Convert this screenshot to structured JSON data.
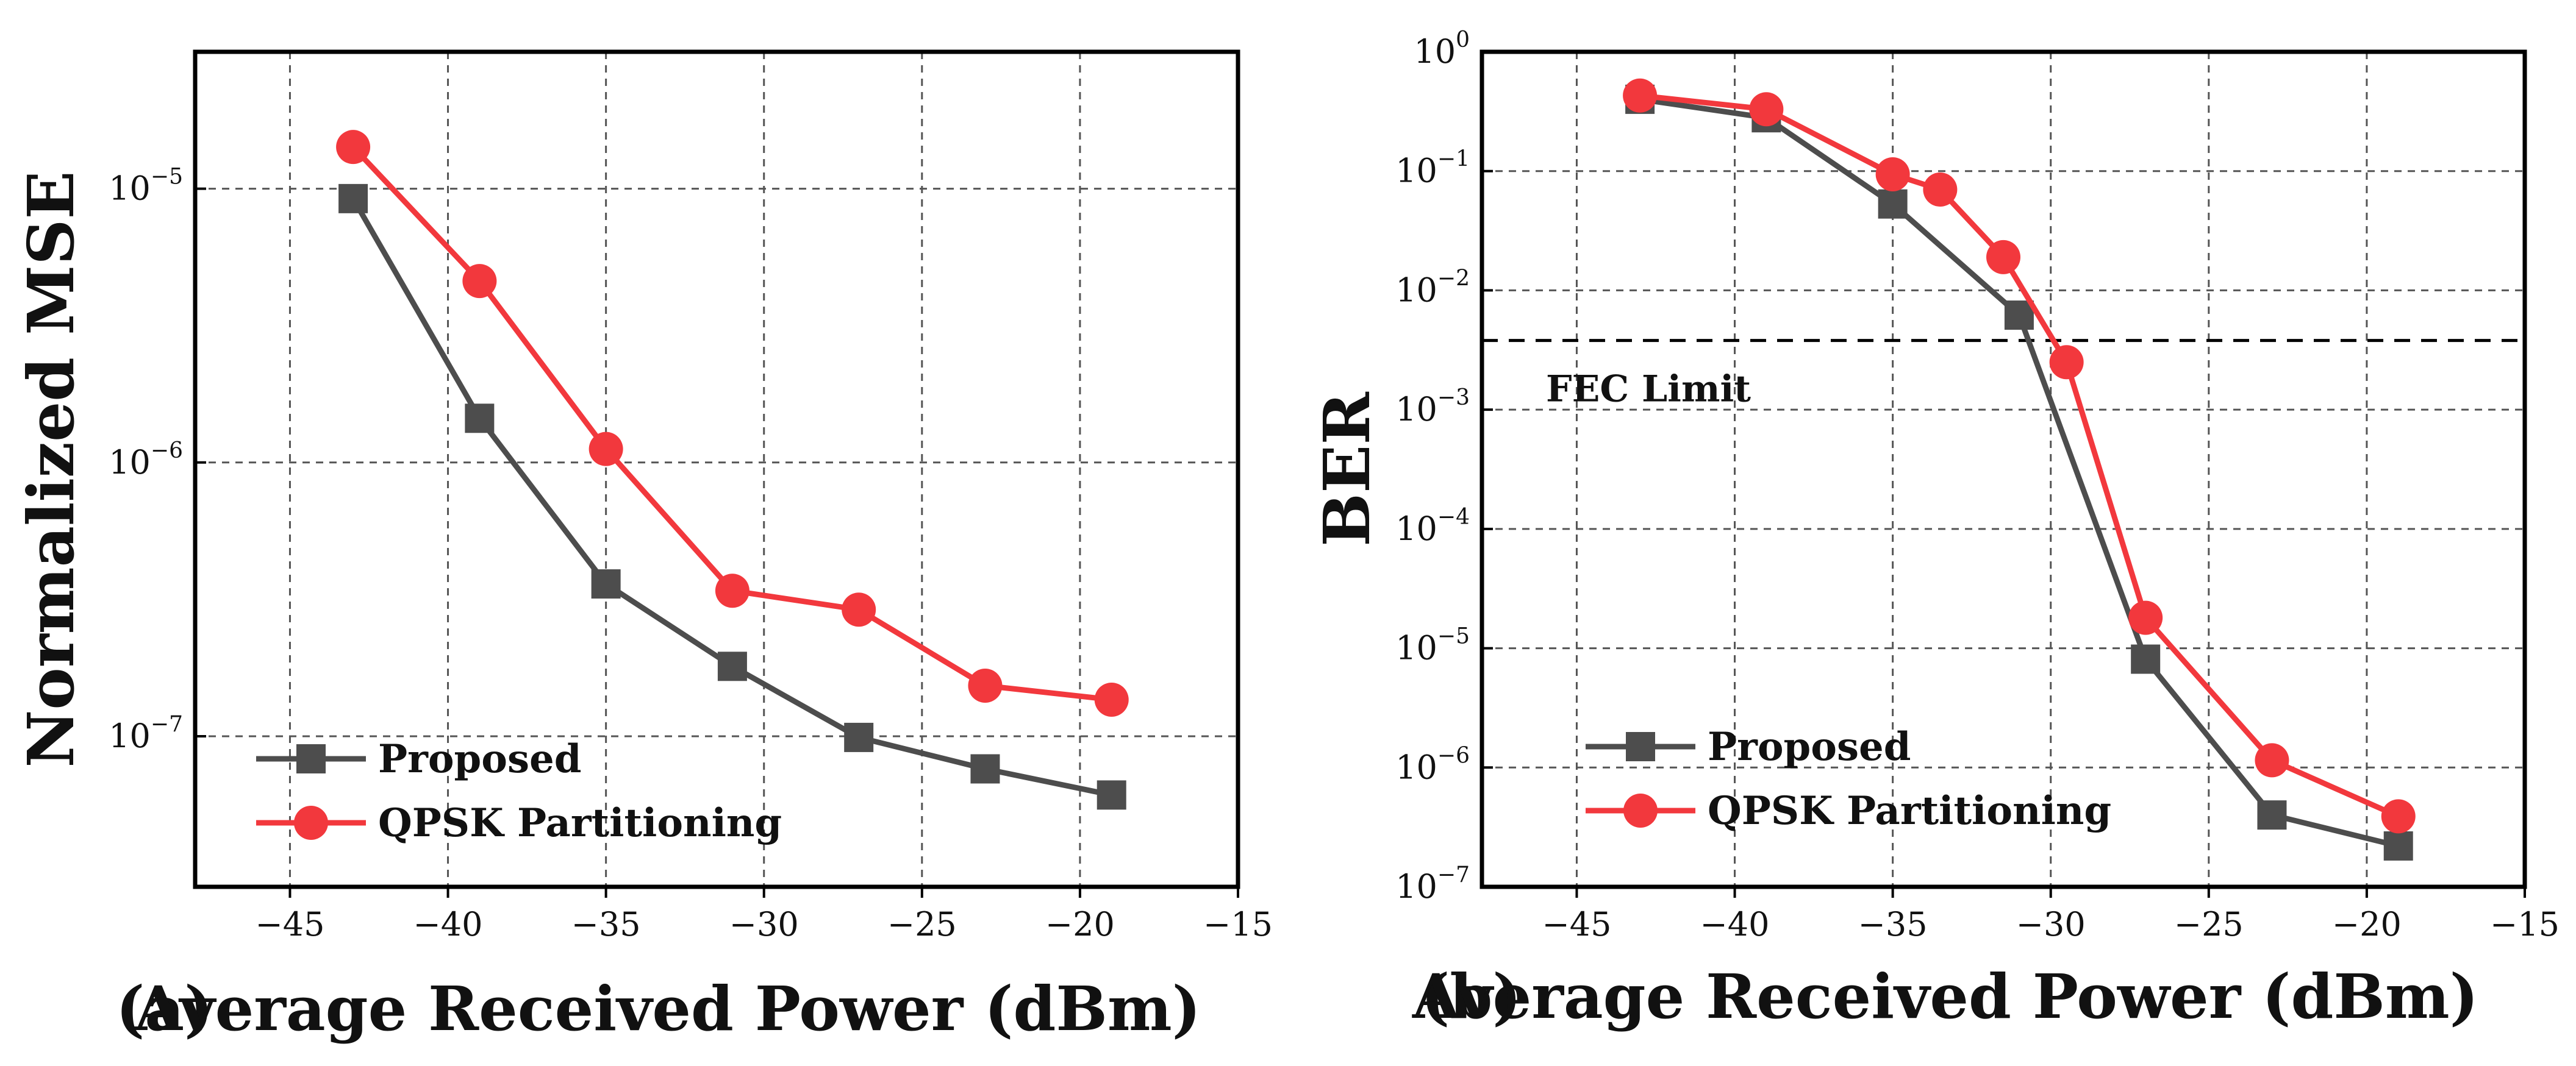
{
  "chart_data": [
    {
      "type": "line",
      "panel": "(a)",
      "xlabel": "Average Received Power (dBm)",
      "ylabel": "Normalized MSE",
      "xlim": [
        -48,
        -15
      ],
      "ylim_log10": [
        -7.55,
        -4.5
      ],
      "yscale": "log",
      "grid": true,
      "xticks": [
        -45,
        -40,
        -35,
        -30,
        -25,
        -20,
        -15
      ],
      "xtick_labels": [
        "−45",
        "−40",
        "−35",
        "−30",
        "−25",
        "−20",
        "−15"
      ],
      "yticks": [
        {
          "exp": -5,
          "base": "10",
          "sup": "−5"
        },
        {
          "exp": -6,
          "base": "10",
          "sup": "−6"
        },
        {
          "exp": -7,
          "base": "10",
          "sup": "−7"
        }
      ],
      "legend_position": "lower-left",
      "series": [
        {
          "name": "Proposed",
          "color": "#4d4d4d",
          "marker": "square",
          "x": [
            -43,
            -39,
            -35,
            -31,
            -27,
            -23,
            -19
          ],
          "y": [
            9.2e-06,
            1.45e-06,
            3.6e-07,
            1.8e-07,
            9.9e-08,
            7.6e-08,
            6.1e-08
          ]
        },
        {
          "name": "QPSK Partitioning",
          "color": "#f2383d",
          "marker": "circle",
          "x": [
            -43,
            -39,
            -35,
            -31,
            -27,
            -23,
            -19
          ],
          "y": [
            1.42e-05,
            4.6e-06,
            1.12e-06,
            3.4e-07,
            2.9e-07,
            1.53e-07,
            1.36e-07
          ]
        }
      ]
    },
    {
      "type": "line",
      "panel": "(b)",
      "xlabel": "Average Received Power (dBm)",
      "ylabel": "BER",
      "xlim": [
        -48,
        -15
      ],
      "ylim_log10": [
        -7,
        0
      ],
      "yscale": "log",
      "grid": true,
      "xticks": [
        -45,
        -40,
        -35,
        -30,
        -25,
        -20,
        -15
      ],
      "xtick_labels": [
        "−45",
        "−40",
        "−35",
        "−30",
        "−25",
        "−20",
        "−15"
      ],
      "yticks": [
        {
          "exp": 0,
          "base": "10",
          "sup": "0"
        },
        {
          "exp": -1,
          "base": "10",
          "sup": "−1"
        },
        {
          "exp": -2,
          "base": "10",
          "sup": "−2"
        },
        {
          "exp": -3,
          "base": "10",
          "sup": "−3"
        },
        {
          "exp": -4,
          "base": "10",
          "sup": "−4"
        },
        {
          "exp": -5,
          "base": "10",
          "sup": "−5"
        },
        {
          "exp": -6,
          "base": "10",
          "sup": "−6"
        },
        {
          "exp": -7,
          "base": "10",
          "sup": "−7"
        }
      ],
      "legend_position": "lower-left",
      "annotation": {
        "text": "FEC Limit",
        "value": 0.0038
      },
      "series": [
        {
          "name": "Proposed",
          "color": "#4d4d4d",
          "marker": "square",
          "x": [
            -43,
            -39,
            -35,
            -31,
            -27,
            -23,
            -19
          ],
          "y": [
            0.4,
            0.28,
            0.053,
            0.0062,
            8.1e-06,
            4e-07,
            2.2e-07
          ]
        },
        {
          "name": "QPSK Partitioning",
          "color": "#f2383d",
          "marker": "circle",
          "x": [
            -43,
            -39,
            -35,
            -33.5,
            -31.5,
            -29.5,
            -27,
            -23,
            -19
          ],
          "y": [
            0.43,
            0.33,
            0.094,
            0.07,
            0.019,
            0.0025,
            1.8e-05,
            1.15e-06,
            3.9e-07
          ]
        }
      ]
    }
  ]
}
